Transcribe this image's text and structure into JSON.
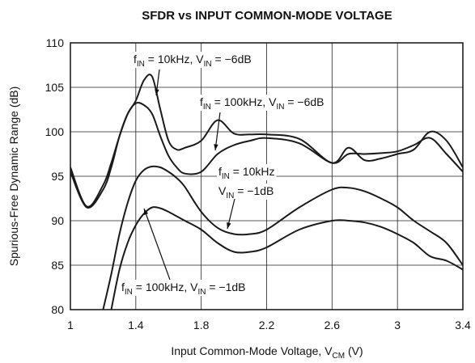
{
  "chart_data": {
    "type": "line",
    "title": "SFDR vs INPUT COMMON-MODE VOLTAGE",
    "y_label": "Spurious-Free Dynamic Range (dB)",
    "x_label": [
      {
        "t": "Input Common-Mode Voltage, V"
      },
      {
        "sub": "CM"
      },
      {
        "t": " (V)"
      }
    ],
    "x": [
      1,
      1.1,
      1.2,
      1.25,
      1.3,
      1.35,
      1.4,
      1.45,
      1.5,
      1.55,
      1.6,
      1.65,
      1.7,
      1.8,
      1.9,
      2,
      2.1,
      2.2,
      2.4,
      2.6,
      2.7,
      2.8,
      2.9,
      3,
      3.1,
      3.2,
      3.3,
      3.4
    ],
    "series": [
      {
        "color": "#1a1a1a",
        "values": [
          96,
          91.6,
          94,
          96.5,
          99.5,
          102,
          103.5,
          105.8,
          106.2,
          102.5,
          99,
          98,
          98.2,
          99,
          101.3,
          99.8,
          99.7,
          99.7,
          99.2,
          96.5,
          98.2,
          96.8,
          97,
          97.5,
          98,
          100,
          99,
          96
        ]
      },
      {
        "color": "#1a1a1a",
        "values": [
          95.5,
          91.5,
          93.5,
          96,
          99.5,
          102,
          103.2,
          103,
          102,
          99.5,
          97.3,
          96,
          95.3,
          95.5,
          97.5,
          98.5,
          99,
          99.3,
          98.7,
          96.5,
          97.5,
          97.5,
          97.6,
          97.8,
          98.5,
          99.3,
          97.5,
          95.5
        ]
      },
      {
        "color": "#1a1a1a",
        "values": [
          null,
          null,
          80,
          84,
          88.5,
          92,
          94.5,
          95.7,
          96.1,
          96,
          95.5,
          94.8,
          93.8,
          91,
          89.2,
          88.5,
          88.5,
          89,
          91.5,
          93.5,
          93.7,
          93.3,
          92.5,
          91.5,
          90,
          88.8,
          87.5,
          85
        ]
      },
      {
        "color": "#1a1a1a",
        "values": [
          null,
          null,
          null,
          80,
          84.5,
          87.5,
          89.5,
          90.8,
          91.5,
          91.4,
          91,
          90.5,
          90,
          89,
          87.5,
          86.5,
          86.5,
          87,
          89,
          90,
          90,
          89.8,
          89.3,
          88.5,
          87.5,
          86,
          85.5,
          84.5
        ]
      }
    ],
    "annotations": [
      {
        "lines": [
          [
            {
              "t": "f"
            },
            {
              "sub": "IN"
            },
            {
              "t": " = 10kHz, V"
            },
            {
              "sub": "IN"
            },
            {
              "t": " = −6dB"
            }
          ]
        ]
      },
      {
        "lines": [
          [
            {
              "t": "f"
            },
            {
              "sub": "IN"
            },
            {
              "t": " = 100kHz, V"
            },
            {
              "sub": "IN"
            },
            {
              "t": " = −6dB"
            }
          ]
        ]
      },
      {
        "lines": [
          [
            {
              "t": "f"
            },
            {
              "sub": "IN"
            },
            {
              "t": " = 10kHz"
            }
          ],
          [
            {
              "t": "V"
            },
            {
              "sub": "IN"
            },
            {
              "t": " = −1dB"
            }
          ]
        ]
      },
      {
        "lines": [
          [
            {
              "t": "f"
            },
            {
              "sub": "IN"
            },
            {
              "t": " = 100kHz, V"
            },
            {
              "sub": "IN"
            },
            {
              "t": " = −1dB"
            }
          ]
        ]
      }
    ],
    "xlim": [
      1,
      3.4
    ],
    "xticks": [
      1,
      1.4,
      1.8,
      2.2,
      2.6,
      3,
      3.4
    ],
    "ylim": [
      80,
      110
    ],
    "yticks": [
      80,
      85,
      90,
      95,
      100,
      105,
      110
    ],
    "grid": true
  }
}
